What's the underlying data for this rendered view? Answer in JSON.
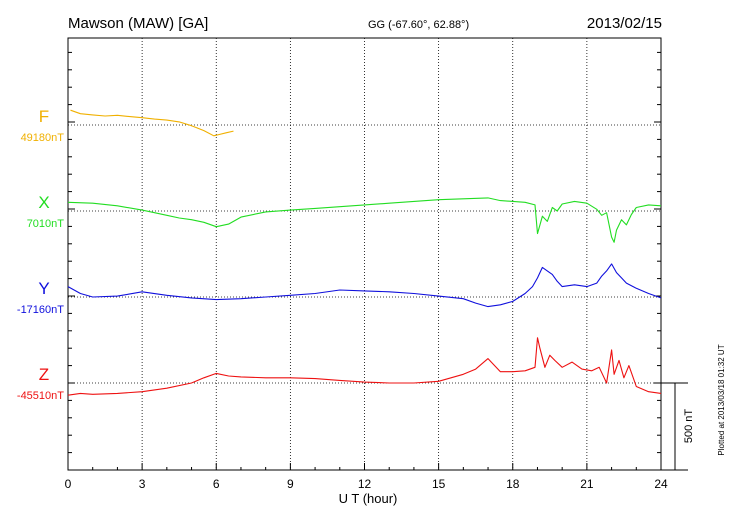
{
  "header": {
    "station": "Mawson (MAW)  [GA]",
    "coords": "GG (-67.60°,  62.88°)",
    "date": "2013/02/15"
  },
  "side_note": "Plotted at 2013/03/18 01:32 UT",
  "chart_data": {
    "type": "line",
    "title": "Mawson (MAW)  [GA]",
    "xlabel": "U T (hour)",
    "ylabel": "",
    "xlim": [
      0,
      24
    ],
    "xticks": [
      0,
      3,
      6,
      9,
      12,
      15,
      18,
      21,
      24
    ],
    "xtick_labels": [
      "0",
      "3",
      "6",
      "9",
      "12",
      "15",
      "18",
      "21",
      "24"
    ],
    "scale_bar": {
      "label": "500 nT",
      "value_nT": 500
    },
    "series": [
      {
        "name": "F",
        "baseline_label": "49180nT",
        "baseline_nT": 49180,
        "color": "#f0b000",
        "x": [
          0.1,
          0.5,
          1.0,
          1.5,
          2.0,
          2.5,
          3.0,
          3.5,
          4.0,
          4.5,
          5.0,
          5.5,
          5.9,
          6.1,
          6.4,
          6.7
        ],
        "y": [
          49265,
          49245,
          49238,
          49232,
          49236,
          49228,
          49222,
          49214,
          49208,
          49198,
          49176,
          49148,
          49118,
          49125,
          49135,
          49145
        ]
      },
      {
        "name": "X",
        "baseline_label": "7010nT",
        "baseline_nT": 7010,
        "color": "#22dd22",
        "x": [
          0,
          1,
          2,
          3,
          3.5,
          4,
          4.5,
          5,
          5.5,
          6,
          6.5,
          7,
          8,
          9,
          10,
          11,
          12,
          13,
          14,
          15,
          16,
          17,
          17.5,
          18,
          18.5,
          18.9,
          19.0,
          19.2,
          19.4,
          19.6,
          19.8,
          20,
          20.5,
          21,
          21.4,
          21.6,
          21.8,
          22.0,
          22.1,
          22.2,
          22.4,
          22.6,
          22.8,
          23,
          23.5,
          24
        ],
        "y": [
          7060,
          7055,
          7040,
          7015,
          7000,
          6985,
          6970,
          6960,
          6945,
          6920,
          6935,
          6975,
          7005,
          7015,
          7025,
          7035,
          7045,
          7055,
          7065,
          7075,
          7080,
          7085,
          7070,
          7065,
          7060,
          7045,
          6880,
          6980,
          6950,
          7030,
          7010,
          7050,
          7065,
          7055,
          7020,
          6985,
          7000,
          6860,
          6830,
          6900,
          6960,
          6930,
          6990,
          7030,
          7045,
          7040
        ]
      },
      {
        "name": "Y",
        "baseline_label": "-17160nT",
        "baseline_nT": -17160,
        "color": "#1010dd",
        "x": [
          0,
          0.5,
          1,
          2,
          3,
          4,
          5,
          6,
          7,
          8,
          9,
          10,
          11,
          12,
          13,
          14,
          15,
          16,
          16.5,
          17,
          17.5,
          18,
          18.5,
          18.8,
          19.0,
          19.2,
          19.4,
          19.6,
          19.8,
          20,
          20.5,
          21,
          21.4,
          21.6,
          21.8,
          22.0,
          22.2,
          22.4,
          22.6,
          23,
          23.5,
          24
        ],
        "y": [
          -17100,
          -17140,
          -17160,
          -17155,
          -17130,
          -17150,
          -17165,
          -17175,
          -17170,
          -17160,
          -17150,
          -17140,
          -17120,
          -17125,
          -17130,
          -17140,
          -17155,
          -17170,
          -17195,
          -17215,
          -17205,
          -17185,
          -17140,
          -17100,
          -17050,
          -16990,
          -17010,
          -17030,
          -17070,
          -17100,
          -17090,
          -17100,
          -17080,
          -17040,
          -17010,
          -16970,
          -17020,
          -17050,
          -17080,
          -17110,
          -17140,
          -17165
        ]
      },
      {
        "name": "Z",
        "baseline_label": "-45510nT",
        "baseline_nT": -45510,
        "color": "#ee1111",
        "x": [
          0,
          0.5,
          1,
          2,
          3,
          4,
          5,
          5.5,
          6,
          6.5,
          7,
          8,
          9,
          10,
          11,
          12,
          13,
          14,
          15,
          15.5,
          16,
          16.5,
          17,
          17.5,
          18,
          18.5,
          18.9,
          19.0,
          19.1,
          19.3,
          19.5,
          19.7,
          20,
          20.4,
          20.8,
          21.2,
          21.5,
          21.8,
          22.0,
          22.1,
          22.3,
          22.5,
          22.7,
          23,
          23.5,
          24
        ],
        "y": [
          -45580,
          -45570,
          -45575,
          -45570,
          -45560,
          -45540,
          -45510,
          -45480,
          -45455,
          -45470,
          -45475,
          -45480,
          -45480,
          -45485,
          -45495,
          -45505,
          -45510,
          -45510,
          -45500,
          -45480,
          -45460,
          -45430,
          -45370,
          -45445,
          -45445,
          -45440,
          -45420,
          -45250,
          -45310,
          -45420,
          -45350,
          -45380,
          -45420,
          -45390,
          -45430,
          -45440,
          -45420,
          -45510,
          -45320,
          -45460,
          -45380,
          -45480,
          -45410,
          -45530,
          -45560,
          -45570
        ]
      }
    ]
  }
}
